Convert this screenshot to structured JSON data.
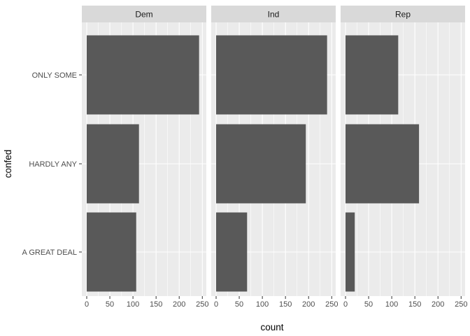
{
  "chart_data": {
    "type": "bar",
    "orientation": "horizontal",
    "facet_by": "party",
    "facets": [
      "Dem",
      "Ind",
      "Rep"
    ],
    "categories": [
      "ONLY SOME",
      "HARDLY ANY",
      "A GREAT DEAL"
    ],
    "series": [
      {
        "facet": "Dem",
        "values": [
          243,
          113,
          107
        ]
      },
      {
        "facet": "Ind",
        "values": [
          240,
          194,
          67
        ]
      },
      {
        "facet": "Rep",
        "values": [
          114,
          159,
          20
        ]
      }
    ],
    "xlabel": "count",
    "ylabel": "confed",
    "xlim": [
      0,
      255
    ],
    "xticks": [
      0,
      50,
      100,
      150,
      200,
      250
    ],
    "grid": true
  },
  "colors": {
    "panel_bg": "#ebebeb",
    "strip_bg": "#d9d9d9",
    "bar_fill": "#595959",
    "grid_major": "#ffffff",
    "tick": "#333333"
  }
}
